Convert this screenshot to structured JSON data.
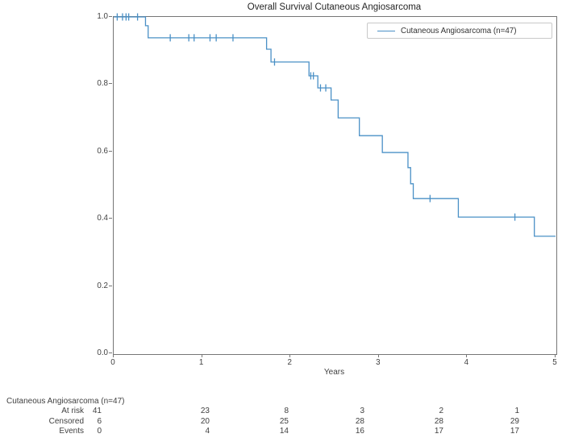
{
  "chart": {
    "title": "Overall Survival Cutaneous Angiosarcoma",
    "xlabel": "Years",
    "legend_label": "Cutaneous Angiosarcoma (n=47)",
    "line_color": "#4a90c6",
    "spine_color": "#767676"
  },
  "chart_data": {
    "type": "line",
    "subtype": "kaplan-meier-step-function",
    "title": "Overall Survival Cutaneous Angiosarcoma",
    "xlabel": "Years",
    "ylabel": "",
    "xlim": [
      0,
      5
    ],
    "ylim": [
      0.0,
      1.0
    ],
    "x_ticks": [
      0,
      1,
      2,
      3,
      4,
      5
    ],
    "y_ticks": [
      0.0,
      0.2,
      0.4,
      0.6,
      0.8,
      1.0
    ],
    "grid": false,
    "legend": {
      "position": "upper right",
      "entries": [
        "Cutaneous Angiosarcoma (n=47)"
      ]
    },
    "series": [
      {
        "name": "Cutaneous Angiosarcoma (n=47)",
        "color": "#4a90c6",
        "steps": [
          [
            0,
            1.0
          ],
          [
            0.36,
            0.974
          ],
          [
            0.39,
            0.938
          ],
          [
            1.73,
            0.904
          ],
          [
            1.78,
            0.866
          ],
          [
            2.21,
            0.825
          ],
          [
            2.31,
            0.789
          ],
          [
            2.46,
            0.753
          ],
          [
            2.54,
            0.7
          ],
          [
            2.78,
            0.647
          ],
          [
            3.04,
            0.597
          ],
          [
            3.33,
            0.552
          ],
          [
            3.36,
            0.504
          ],
          [
            3.39,
            0.46
          ],
          [
            3.9,
            0.405
          ],
          [
            4.76,
            0.348
          ],
          [
            5.0,
            0.348
          ]
        ],
        "censor_marks": [
          [
            0.04,
            1.0
          ],
          [
            0.1,
            1.0
          ],
          [
            0.14,
            1.0
          ],
          [
            0.17,
            1.0
          ],
          [
            0.27,
            1.0
          ],
          [
            0.64,
            0.938
          ],
          [
            0.85,
            0.938
          ],
          [
            0.91,
            0.938
          ],
          [
            1.09,
            0.938
          ],
          [
            1.16,
            0.938
          ],
          [
            1.35,
            0.938
          ],
          [
            1.82,
            0.866
          ],
          [
            2.23,
            0.825
          ],
          [
            2.26,
            0.825
          ],
          [
            2.34,
            0.789
          ],
          [
            2.4,
            0.789
          ],
          [
            3.58,
            0.46
          ],
          [
            4.54,
            0.405
          ]
        ]
      }
    ],
    "risk_table": {
      "group_label": "Cutaneous Angiosarcoma (n=47)",
      "times": [
        0,
        1,
        2,
        3,
        4,
        5
      ],
      "rows": [
        {
          "label": "At risk",
          "values": [
            41,
            23,
            8,
            3,
            2,
            1
          ]
        },
        {
          "label": "Censored",
          "values": [
            6,
            20,
            25,
            28,
            28,
            29
          ]
        },
        {
          "label": "Events",
          "values": [
            0,
            4,
            14,
            16,
            17,
            17
          ]
        }
      ]
    }
  }
}
